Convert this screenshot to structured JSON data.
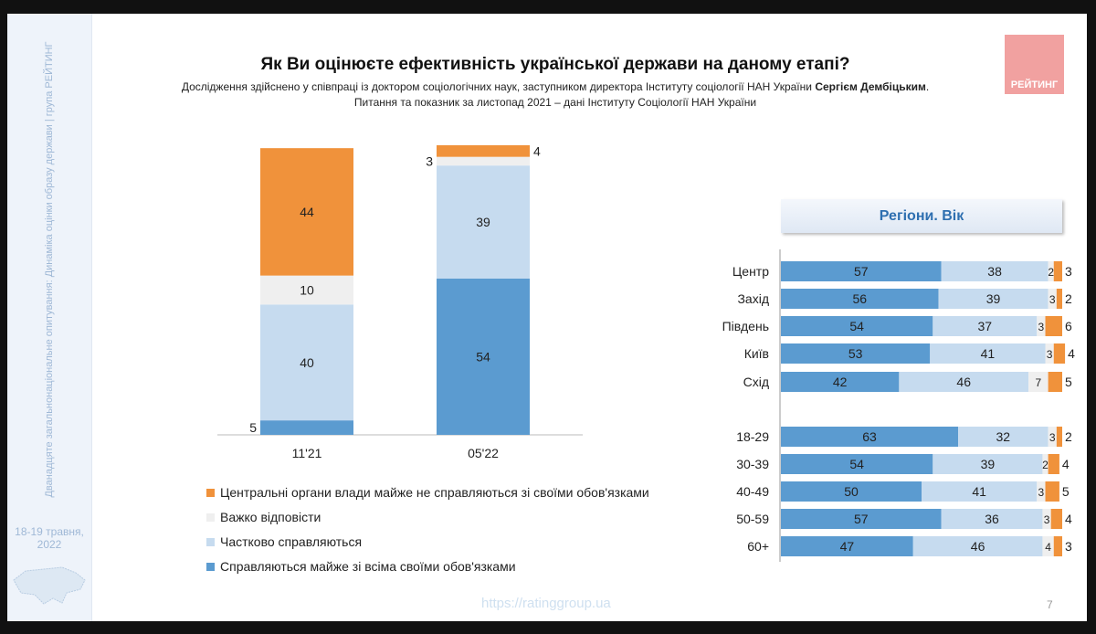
{
  "sidebar": {
    "text": "Дванадцяте загальнонаціональне опитування: Динаміка оцінки образу держави | група РЕЙТИНГ",
    "date": "18-19 травня, 2022"
  },
  "header": {
    "title": "Як Ви оцінюєте ефективність української держави на даному етапі?",
    "subtitle1": "Дослідження здійснено у співпраці із доктором соціологічних наук, заступником директора Інституту соціології НАН України ",
    "subtitle1_bold": "Сергієм Дембіцьким",
    "subtitle2": "Питання та показник за листопад 2021 – дані Інституту Соціології НАН України"
  },
  "logo": "РЕЙТИНГ",
  "colors": {
    "copes": "#5b9bd0",
    "partly": "#c6dbef",
    "hard": "#efefef",
    "not": "#f0923b"
  },
  "legend": [
    "Центральні органи влади майже не справляються зі своїми обов'язками",
    "Важко відповісти",
    "Частково справляються",
    "Справляються майже зі всіма своїми обов'язками"
  ],
  "chart_data": [
    {
      "type": "bar",
      "stacked": true,
      "categories": [
        "11'21",
        "05'22"
      ],
      "series": [
        {
          "name": "Справляються майже зі всіма своїми обов'язками",
          "values": [
            5,
            54
          ]
        },
        {
          "name": "Частково справляються",
          "values": [
            40,
            39
          ]
        },
        {
          "name": "Важко відповісти",
          "values": [
            10,
            3
          ]
        },
        {
          "name": "Центральні органи влади майже не справляються зі своїми обов'язками",
          "values": [
            44,
            4
          ]
        }
      ],
      "legend_placement": "bottom"
    },
    {
      "type": "bar",
      "orientation": "horizontal",
      "stacked": true,
      "title": "Регіони. Вік",
      "categories": [
        "Центр",
        "Захід",
        "Південь",
        "Київ",
        "Схід",
        "18-29",
        "30-39",
        "40-49",
        "50-59",
        "60+"
      ],
      "series": [
        {
          "name": "Справляються майже зі всіма своїми обов'язками",
          "values": [
            57,
            56,
            54,
            53,
            42,
            63,
            54,
            50,
            57,
            47
          ]
        },
        {
          "name": "Частково справляються",
          "values": [
            38,
            39,
            37,
            41,
            46,
            32,
            39,
            41,
            36,
            46
          ]
        },
        {
          "name": "Важко відповісти",
          "values": [
            2,
            3,
            3,
            3,
            7,
            3,
            2,
            3,
            3,
            4
          ]
        },
        {
          "name": "Центральні органи влади майже не справляються зі своїми обов'язками",
          "values": [
            3,
            2,
            6,
            4,
            5,
            2,
            4,
            5,
            4,
            3
          ]
        }
      ]
    }
  ],
  "footer": {
    "url": "https://ratinggroup.ua",
    "page": "7"
  }
}
